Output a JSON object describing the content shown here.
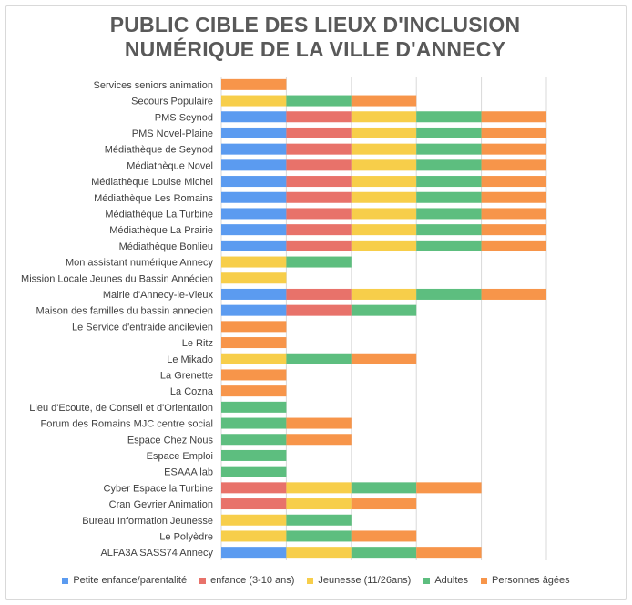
{
  "chart_data": {
    "type": "bar",
    "stacked": true,
    "orientation": "horizontal",
    "title_lines": [
      "PUBLIC CIBLE DES LIEUX D'INCLUSION",
      "NUMÉRIQUE DE LA VILLE D'ANNECY"
    ],
    "grid": "vertical",
    "legend_position": "bottom",
    "categories": [
      "Services seniors animation",
      "Secours Populaire",
      "PMS Seynod",
      "PMS Novel-Plaine",
      "Médiathèque de Seynod",
      "Médiathèque Novel",
      "Médiathèque Louise Michel",
      "Médiathèque Les Romains",
      "Médiathèque La Turbine",
      "Médiathèque La Prairie",
      "Médiathèque Bonlieu",
      "Mon assistant numérique Annecy",
      "Mission Locale Jeunes du Bassin Annécien",
      "Mairie d'Annecy-le-Vieux",
      "Maison des familles du bassin annecien",
      "Le Service d'entraide ancilevien",
      "Le Ritz",
      "Le Mikado",
      "La Grenette",
      "La Cozna",
      "Lieu d'Ecoute, de Conseil et d'Orientation",
      "Forum des Romains MJC centre social",
      "Espace Chez Nous",
      "Espace Emploi",
      "ESAAA lab",
      "Cyber Espace la Turbine",
      "Cran Gevrier Animation",
      "Bureau Information Jeunesse",
      "Le Polyèdre",
      "ALFA3A SASS74 Annecy"
    ],
    "series": [
      {
        "name": "Petite enfance/parentalité",
        "color": "#5B9BF0",
        "values": [
          0,
          0,
          1,
          1,
          1,
          1,
          1,
          1,
          1,
          1,
          1,
          0,
          0,
          1,
          1,
          0,
          0,
          0,
          0,
          0,
          0,
          0,
          0,
          0,
          0,
          0,
          0,
          0,
          0,
          1
        ]
      },
      {
        "name": "enfance (3-10 ans)",
        "color": "#E8726A",
        "values": [
          0,
          0,
          1,
          1,
          1,
          1,
          1,
          1,
          1,
          1,
          1,
          0,
          0,
          1,
          1,
          0,
          0,
          0,
          0,
          0,
          0,
          0,
          0,
          0,
          0,
          1,
          1,
          0,
          0,
          0
        ]
      },
      {
        "name": "Jeunesse (11/26ans)",
        "color": "#F7CE4A",
        "values": [
          0,
          1,
          1,
          1,
          1,
          1,
          1,
          1,
          1,
          1,
          1,
          1,
          1,
          1,
          0,
          0,
          0,
          1,
          0,
          0,
          0,
          0,
          0,
          0,
          0,
          1,
          1,
          1,
          1,
          1
        ]
      },
      {
        "name": "Adultes",
        "color": "#5DBE7F",
        "values": [
          0,
          1,
          1,
          1,
          1,
          1,
          1,
          1,
          1,
          1,
          1,
          1,
          0,
          1,
          1,
          0,
          0,
          1,
          0,
          0,
          1,
          1,
          1,
          1,
          1,
          1,
          0,
          1,
          1,
          1
        ]
      },
      {
        "name": "Personnes âgées",
        "color": "#F7954A",
        "values": [
          1,
          1,
          1,
          1,
          1,
          1,
          1,
          1,
          1,
          1,
          1,
          0,
          0,
          1,
          0,
          1,
          1,
          1,
          1,
          1,
          0,
          1,
          1,
          0,
          0,
          1,
          1,
          0,
          1,
          1
        ]
      }
    ],
    "xlim": [
      0,
      5
    ]
  }
}
